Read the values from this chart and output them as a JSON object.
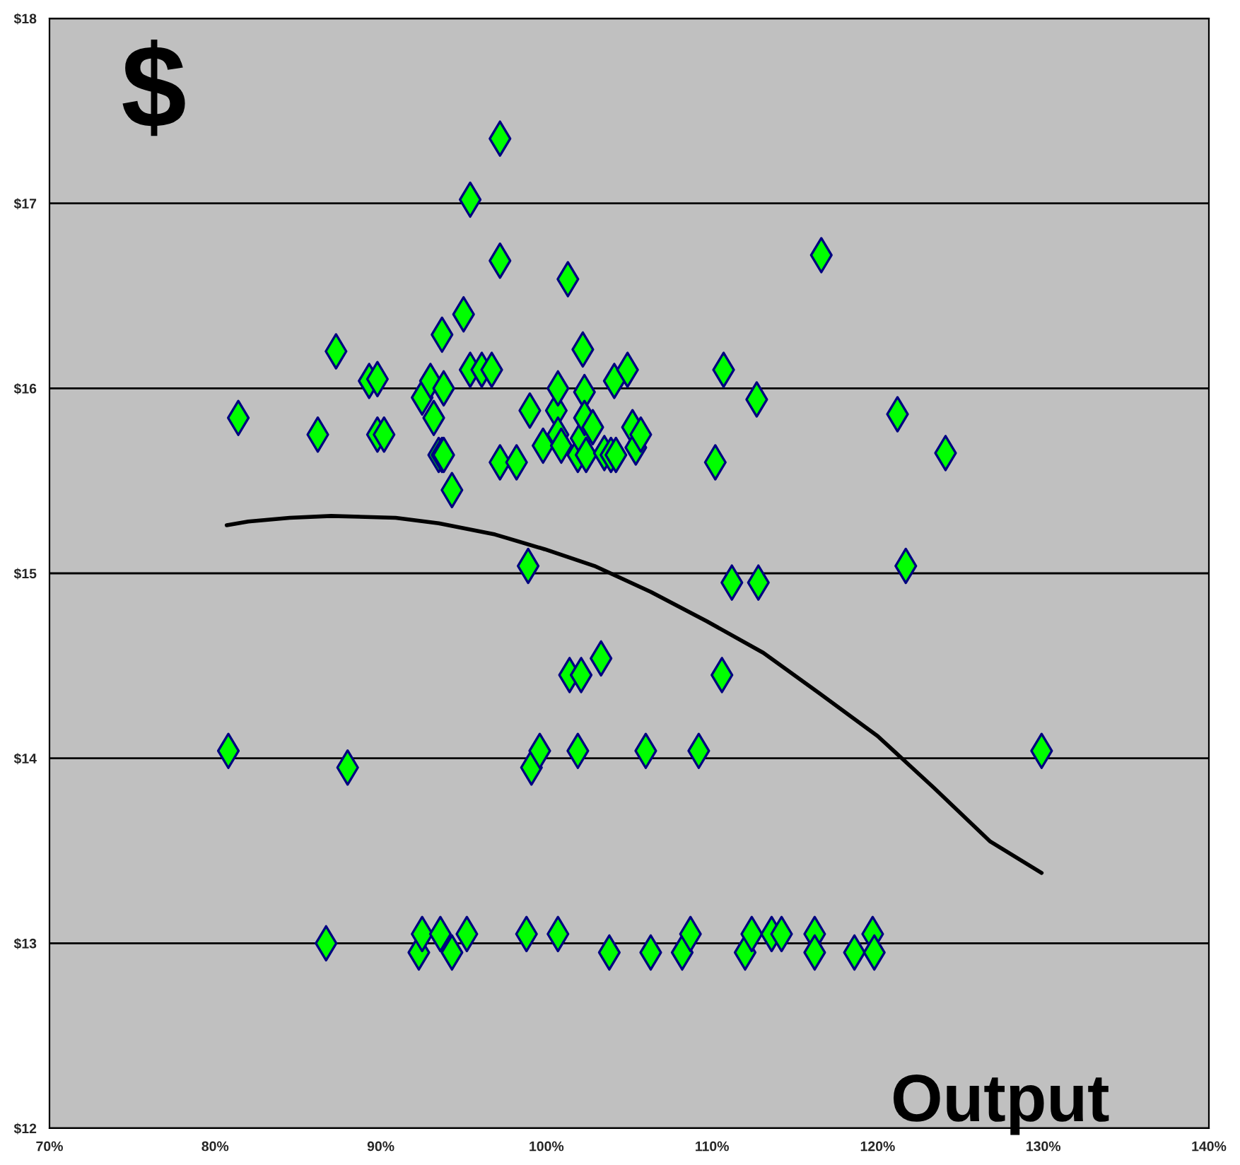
{
  "chart_data": {
    "type": "scatter",
    "xlabel": "Output",
    "ylabel": "$",
    "xlim": [
      70,
      140
    ],
    "xticks": [
      {
        "value": 70,
        "label": "70%"
      },
      {
        "value": 80,
        "label": "80%"
      },
      {
        "value": 90,
        "label": "90%"
      },
      {
        "value": 100,
        "label": "100%"
      },
      {
        "value": 110,
        "label": "110%"
      },
      {
        "value": 120,
        "label": "120%"
      },
      {
        "value": 130,
        "label": "130%"
      },
      {
        "value": 140,
        "label": "140%"
      }
    ],
    "ylim": [
      12,
      18
    ],
    "yticks": [
      {
        "value": 12,
        "label": "$12"
      },
      {
        "value": 13,
        "label": "$13"
      },
      {
        "value": 14,
        "label": "$14"
      },
      {
        "value": 15,
        "label": "$15"
      },
      {
        "value": 16,
        "label": "$16"
      },
      {
        "value": 17,
        "label": "$17"
      },
      {
        "value": 18,
        "label": "$18"
      }
    ],
    "grid": "y",
    "legend": false,
    "series": [
      {
        "marker": "diamond",
        "color": "#00ff00",
        "x": [
          81.4,
          86.2,
          87.3,
          89.3,
          89.8,
          89.8,
          90.2,
          92.5,
          93.0,
          93.2,
          93.5,
          93.7,
          93.8,
          93.7,
          93.8,
          94.3,
          95.0,
          95.4,
          95.4,
          96.1,
          96.7,
          97.2,
          97.2,
          97.2,
          98.2,
          99.0,
          98.9,
          99.8,
          100.6,
          100.7,
          100.7,
          100.9,
          101.3,
          101.9,
          102.1,
          102.2,
          102.3,
          102.3,
          102.4,
          102.8,
          103.5,
          103.9,
          104.2,
          104.1,
          104.9,
          105.2,
          105.4,
          105.7,
          110.2,
          110.7,
          111.2,
          112.7,
          112.8,
          116.6,
          121.2,
          121.7,
          124.1,
          110.6,
          101.4,
          102.1,
          103.3,
          80.8,
          88.0,
          99.1,
          99.6,
          101.9,
          106.0,
          109.2,
          129.9,
          86.7,
          92.3,
          92.5,
          93.6,
          94.3,
          95.2,
          98.8,
          100.7,
          103.8,
          106.3,
          108.2,
          108.7,
          112.0,
          112.4,
          113.6,
          114.2,
          116.2,
          116.2,
          118.6,
          119.7,
          119.8
        ],
        "values": [
          15.84,
          15.75,
          16.2,
          16.04,
          16.05,
          15.75,
          15.75,
          15.95,
          16.04,
          15.84,
          15.64,
          15.64,
          15.64,
          16.29,
          16.0,
          15.45,
          16.4,
          17.02,
          16.1,
          16.1,
          16.1,
          17.35,
          16.69,
          15.6,
          15.6,
          15.88,
          15.04,
          15.69,
          15.88,
          16.0,
          15.75,
          15.69,
          16.59,
          15.64,
          15.73,
          16.21,
          15.98,
          15.84,
          15.64,
          15.79,
          15.65,
          15.64,
          15.64,
          16.04,
          16.1,
          15.79,
          15.68,
          15.75,
          15.6,
          16.1,
          14.95,
          15.94,
          14.95,
          16.72,
          15.86,
          15.04,
          15.65,
          14.45,
          14.45,
          14.45,
          14.54,
          14.04,
          13.95,
          13.95,
          14.04,
          14.04,
          14.04,
          14.04,
          14.04,
          13.0,
          12.95,
          13.05,
          13.05,
          12.95,
          13.05,
          13.05,
          13.05,
          12.95,
          12.95,
          12.95,
          13.05,
          12.95,
          13.05,
          13.05,
          13.05,
          13.05,
          12.95,
          12.95,
          13.05,
          12.95
        ]
      },
      {
        "type": "line",
        "marker": "none",
        "line_style": "solid",
        "color": "#000000",
        "x": [
          80.7,
          82.0,
          84.5,
          87.0,
          90.9,
          93.5,
          96.9,
          99.9,
          102.9,
          106.3,
          109.7,
          113.1,
          116.5,
          120.0,
          123.4,
          126.8,
          129.9
        ],
        "values": [
          15.26,
          15.28,
          15.3,
          15.31,
          15.3,
          15.27,
          15.21,
          15.13,
          15.04,
          14.9,
          14.74,
          14.57,
          14.35,
          14.12,
          13.84,
          13.55,
          13.38
        ]
      }
    ]
  }
}
